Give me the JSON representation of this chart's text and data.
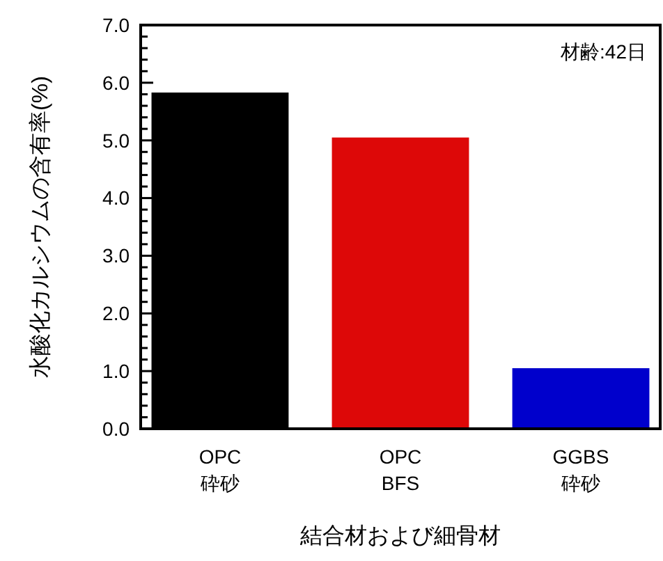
{
  "chart_data": {
    "type": "bar",
    "xlabel": "結合材および細骨材",
    "ylabel": "水酸化カルシウムの含有率(%)",
    "categories": [
      "OPC\n砕砂",
      "OPC\nBFS",
      "GGBS\n砕砂"
    ],
    "values": [
      5.83,
      5.05,
      1.05
    ],
    "colors": [
      "#000000",
      "#dd0808",
      "#0000cc"
    ],
    "ylim": [
      0,
      7
    ],
    "yticks": [
      {
        "value": 0,
        "label": "0.0"
      },
      {
        "value": 0.2,
        "label": null
      },
      {
        "value": 0.4,
        "label": null
      },
      {
        "value": 0.6,
        "label": null
      },
      {
        "value": 0.8,
        "label": null
      },
      {
        "value": 1,
        "label": "1.0"
      },
      {
        "value": 1.2,
        "label": null
      },
      {
        "value": 1.4,
        "label": null
      },
      {
        "value": 1.6,
        "label": null
      },
      {
        "value": 1.8,
        "label": null
      },
      {
        "value": 2,
        "label": "2.0"
      },
      {
        "value": 2.2,
        "label": null
      },
      {
        "value": 2.4,
        "label": null
      },
      {
        "value": 2.6,
        "label": null
      },
      {
        "value": 2.8,
        "label": null
      },
      {
        "value": 3,
        "label": "3.0"
      },
      {
        "value": 3.2,
        "label": null
      },
      {
        "value": 3.4,
        "label": null
      },
      {
        "value": 3.6,
        "label": null
      },
      {
        "value": 3.8,
        "label": null
      },
      {
        "value": 4,
        "label": "4.0"
      },
      {
        "value": 4.2,
        "label": null
      },
      {
        "value": 4.4,
        "label": null
      },
      {
        "value": 4.6,
        "label": null
      },
      {
        "value": 4.8,
        "label": null
      },
      {
        "value": 5,
        "label": "5.0"
      },
      {
        "value": 5.2,
        "label": null
      },
      {
        "value": 5.4,
        "label": null
      },
      {
        "value": 5.6,
        "label": null
      },
      {
        "value": 5.8,
        "label": null
      },
      {
        "value": 6,
        "label": "6.0"
      },
      {
        "value": 6.2,
        "label": null
      },
      {
        "value": 6.4,
        "label": null
      },
      {
        "value": 6.6,
        "label": null
      },
      {
        "value": 6.8,
        "label": null
      },
      {
        "value": 7,
        "label": "7.0"
      }
    ],
    "annotations": [
      "材齢:42日"
    ],
    "grid": false
  }
}
